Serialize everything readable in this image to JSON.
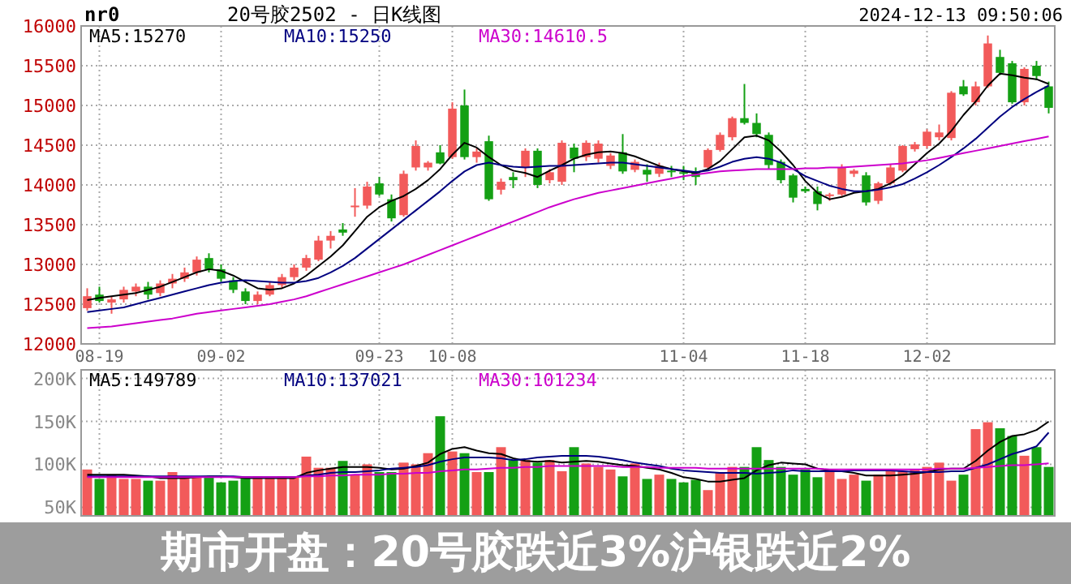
{
  "chart_data": [
    {
      "type": "candlestick",
      "title": "20号胶2502 - 日K线图",
      "annotations": [
        "nr0",
        "2024-12-13 09:50:06",
        "期市开盘：20号胶跌近3%沪银跌近2%"
      ],
      "categories": [
        null,
        "08-19",
        null,
        null,
        null,
        null,
        null,
        null,
        null,
        null,
        null,
        "09-02",
        null,
        null,
        null,
        null,
        null,
        null,
        null,
        null,
        null,
        null,
        null,
        null,
        "09-23",
        null,
        null,
        null,
        null,
        null,
        "10-08",
        null,
        null,
        null,
        null,
        null,
        null,
        null,
        null,
        null,
        null,
        null,
        null,
        null,
        null,
        null,
        null,
        null,
        null,
        "11-04",
        null,
        null,
        null,
        null,
        null,
        null,
        null,
        null,
        null,
        "11-18",
        null,
        null,
        null,
        null,
        null,
        null,
        null,
        null,
        null,
        "12-02",
        null,
        null,
        null,
        null,
        null,
        null,
        null,
        null,
        null,
        null
      ],
      "ohlc": [
        [
          12450,
          12700,
          12420,
          12600
        ],
        [
          12620,
          12720,
          12520,
          12540
        ],
        [
          12520,
          12600,
          12380,
          12560
        ],
        [
          12560,
          12720,
          12520,
          12680
        ],
        [
          12660,
          12760,
          12600,
          12720
        ],
        [
          12720,
          12780,
          12560,
          12620
        ],
        [
          12640,
          12800,
          12600,
          12760
        ],
        [
          12760,
          12880,
          12700,
          12820
        ],
        [
          12820,
          12960,
          12780,
          12900
        ],
        [
          12900,
          13100,
          12860,
          13060
        ],
        [
          13080,
          13140,
          12900,
          12940
        ],
        [
          12940,
          13000,
          12780,
          12820
        ],
        [
          12800,
          12840,
          12640,
          12680
        ],
        [
          12660,
          12700,
          12500,
          12540
        ],
        [
          12540,
          12660,
          12500,
          12620
        ],
        [
          12620,
          12780,
          12600,
          12740
        ],
        [
          12740,
          12880,
          12700,
          12840
        ],
        [
          12840,
          13000,
          12800,
          12960
        ],
        [
          12960,
          13120,
          12920,
          13080
        ],
        [
          13060,
          13360,
          13040,
          13300
        ],
        [
          13300,
          13420,
          13200,
          13360
        ],
        [
          13440,
          13520,
          13360,
          13400
        ],
        [
          13720,
          13960,
          13600,
          13740
        ],
        [
          13740,
          14040,
          13700,
          13980
        ],
        [
          14020,
          14100,
          13860,
          13880
        ],
        [
          13820,
          13880,
          13540,
          13580
        ],
        [
          13620,
          14180,
          13600,
          14140
        ],
        [
          14220,
          14560,
          14180,
          14490
        ],
        [
          14220,
          14300,
          14180,
          14280
        ],
        [
          14410,
          14500,
          14260,
          14270
        ],
        [
          14350,
          15040,
          14330,
          14960
        ],
        [
          15000,
          15200,
          14320,
          14350
        ],
        [
          14350,
          14460,
          14280,
          14420
        ],
        [
          14550,
          14620,
          13800,
          13820
        ],
        [
          13940,
          14080,
          13880,
          14040
        ],
        [
          14100,
          14160,
          13960,
          14060
        ],
        [
          14220,
          14460,
          14100,
          14430
        ],
        [
          14430,
          14460,
          13960,
          14000
        ],
        [
          14060,
          14200,
          14020,
          14160
        ],
        [
          14040,
          14560,
          14000,
          14530
        ],
        [
          14470,
          14520,
          14160,
          14330
        ],
        [
          14350,
          14560,
          14300,
          14530
        ],
        [
          14330,
          14560,
          14280,
          14520
        ],
        [
          14240,
          14400,
          14200,
          14370
        ],
        [
          14410,
          14640,
          14140,
          14170
        ],
        [
          14190,
          14320,
          14160,
          14290
        ],
        [
          14190,
          14260,
          14040,
          14130
        ],
        [
          14140,
          14280,
          14100,
          14240
        ],
        [
          14180,
          14240,
          14100,
          14160
        ],
        [
          14160,
          14240,
          14060,
          14140
        ],
        [
          14170,
          14220,
          14000,
          14100
        ],
        [
          14220,
          14460,
          14200,
          14440
        ],
        [
          14440,
          14660,
          14420,
          14630
        ],
        [
          14600,
          14860,
          14560,
          14840
        ],
        [
          14840,
          15270,
          14760,
          14780
        ],
        [
          14780,
          14900,
          14600,
          14640
        ],
        [
          14630,
          14660,
          14200,
          14250
        ],
        [
          14290,
          14320,
          14020,
          14060
        ],
        [
          14120,
          14140,
          13780,
          13840
        ],
        [
          13950,
          13980,
          13900,
          13920
        ],
        [
          13920,
          13980,
          13680,
          13760
        ],
        [
          13860,
          13900,
          13800,
          13880
        ],
        [
          13880,
          14260,
          13860,
          14220
        ],
        [
          14140,
          14200,
          14100,
          14180
        ],
        [
          14120,
          14160,
          13740,
          13780
        ],
        [
          13800,
          14040,
          13760,
          14020
        ],
        [
          14020,
          14260,
          14000,
          14220
        ],
        [
          14180,
          14500,
          14160,
          14490
        ],
        [
          14450,
          14540,
          14420,
          14510
        ],
        [
          14490,
          14700,
          14460,
          14670
        ],
        [
          14600,
          14760,
          14560,
          14660
        ],
        [
          14590,
          15180,
          14560,
          15160
        ],
        [
          15240,
          15320,
          15120,
          15140
        ],
        [
          15040,
          15300,
          15000,
          15240
        ],
        [
          15240,
          15880,
          15220,
          15780
        ],
        [
          15610,
          15700,
          15380,
          15410
        ],
        [
          15530,
          15560,
          15020,
          15040
        ],
        [
          15040,
          15480,
          15000,
          15460
        ],
        [
          15500,
          15560,
          15320,
          15370
        ],
        [
          15240,
          15300,
          14900,
          14970
        ]
      ],
      "series": [
        {
          "name": "MA5:15270",
          "type": "line",
          "color": "#000000",
          "values": [
            12550,
            12580,
            12600,
            12620,
            12640,
            12680,
            12720,
            12780,
            12840,
            12900,
            12940,
            12920,
            12860,
            12780,
            12700,
            12680,
            12700,
            12760,
            12860,
            12980,
            13100,
            13240,
            13420,
            13600,
            13720,
            13800,
            13860,
            13950,
            14060,
            14200,
            14380,
            14530,
            14470,
            14350,
            14250,
            14180,
            14150,
            14100,
            14180,
            14250,
            14330,
            14380,
            14410,
            14420,
            14400,
            14360,
            14300,
            14240,
            14200,
            14170,
            14150,
            14200,
            14300,
            14450,
            14600,
            14620,
            14560,
            14420,
            14250,
            14050,
            13900,
            13820,
            13850,
            13900,
            13920,
            13950,
            14020,
            14120,
            14260,
            14400,
            14520,
            14680,
            14880,
            15050,
            15250,
            15400,
            15380,
            15350,
            15330,
            15270
          ]
        },
        {
          "name": "MA10:15250",
          "type": "line",
          "color": "#000080",
          "values": [
            12400,
            12420,
            12440,
            12460,
            12500,
            12540,
            12580,
            12620,
            12660,
            12700,
            12740,
            12770,
            12790,
            12800,
            12790,
            12780,
            12770,
            12770,
            12790,
            12830,
            12900,
            12980,
            13080,
            13200,
            13320,
            13440,
            13560,
            13680,
            13800,
            13920,
            14050,
            14170,
            14250,
            14280,
            14250,
            14230,
            14220,
            14230,
            14240,
            14240,
            14250,
            14260,
            14270,
            14280,
            14280,
            14260,
            14240,
            14220,
            14200,
            14180,
            14160,
            14180,
            14230,
            14290,
            14330,
            14350,
            14330,
            14280,
            14200,
            14110,
            14050,
            13990,
            13950,
            13920,
            13920,
            13940,
            13970,
            14010,
            14080,
            14160,
            14250,
            14350,
            14460,
            14580,
            14720,
            14860,
            14980,
            15080,
            15170,
            15250
          ]
        },
        {
          "name": "MA30:14610.5",
          "type": "line",
          "color": "#cc00cc",
          "values": [
            12200,
            12210,
            12220,
            12240,
            12260,
            12280,
            12300,
            12320,
            12350,
            12380,
            12400,
            12420,
            12440,
            12460,
            12480,
            12500,
            12530,
            12560,
            12600,
            12650,
            12700,
            12750,
            12800,
            12850,
            12900,
            12950,
            13000,
            13060,
            13120,
            13180,
            13240,
            13300,
            13360,
            13420,
            13480,
            13540,
            13600,
            13660,
            13720,
            13770,
            13820,
            13860,
            13900,
            13930,
            13960,
            13990,
            14020,
            14050,
            14080,
            14110,
            14130,
            14150,
            14170,
            14180,
            14190,
            14200,
            14200,
            14200,
            14200,
            14210,
            14210,
            14220,
            14220,
            14230,
            14240,
            14250,
            14260,
            14270,
            14290,
            14310,
            14340,
            14370,
            14400,
            14430,
            14460,
            14490,
            14520,
            14550,
            14580,
            14610.5
          ]
        }
      ],
      "ylim": [
        12000,
        16000
      ],
      "yticks": [
        12000,
        12500,
        13000,
        13500,
        14000,
        14500,
        15000,
        15500,
        16000
      ],
      "grid": true,
      "legend": "top"
    },
    {
      "type": "bar",
      "tick_labels": "y",
      "categories": [
        null,
        null,
        null,
        null,
        null,
        null,
        null,
        null,
        null,
        null,
        null,
        null,
        null,
        null,
        null,
        null,
        null,
        null,
        null,
        null,
        null,
        null,
        null,
        null,
        null,
        null,
        null,
        null,
        null,
        null,
        null,
        null,
        null,
        null,
        null,
        null,
        null,
        null,
        null,
        null,
        null,
        null,
        null,
        null,
        null,
        null,
        null,
        null,
        null,
        null,
        null,
        null,
        null,
        null,
        null,
        null,
        null,
        null,
        null,
        null,
        null,
        null,
        null,
        null,
        null,
        null,
        null,
        null,
        null,
        null,
        null,
        null,
        null,
        null,
        null,
        null,
        null,
        null,
        null,
        null
      ],
      "values": [
        94000,
        83000,
        88000,
        83000,
        83000,
        81000,
        81000,
        91000,
        85000,
        85000,
        86000,
        79000,
        81000,
        86000,
        86000,
        85000,
        86000,
        86000,
        109000,
        96000,
        96000,
        104000,
        88000,
        100000,
        91000,
        91000,
        102000,
        100000,
        113000,
        156000,
        115000,
        113000,
        91000,
        91000,
        120000,
        105000,
        105000,
        102000,
        105000,
        92000,
        120000,
        101000,
        97000,
        94000,
        86000,
        101000,
        83000,
        88000,
        83000,
        79000,
        82000,
        70000,
        91000,
        97000,
        97000,
        120000,
        105000,
        97000,
        88000,
        94000,
        85000,
        91000,
        83000,
        88000,
        81000,
        88000,
        92000,
        92000,
        94000,
        97000,
        102000,
        81000,
        88000,
        141000,
        149000,
        142000,
        133000,
        110000,
        120000,
        97000
      ],
      "colors": [
        "#f25a5a",
        "#14a014",
        "#f25a5a",
        "#f25a5a",
        "#f25a5a",
        "#14a014",
        "#f25a5a",
        "#f25a5a",
        "#f25a5a",
        "#f25a5a",
        "#14a014",
        "#14a014",
        "#14a014",
        "#14a014",
        "#f25a5a",
        "#f25a5a",
        "#f25a5a",
        "#f25a5a",
        "#f25a5a",
        "#f25a5a",
        "#f25a5a",
        "#14a014",
        "#f25a5a",
        "#f25a5a",
        "#14a014",
        "#14a014",
        "#f25a5a",
        "#f25a5a",
        "#f25a5a",
        "#14a014",
        "#f25a5a",
        "#14a014",
        "#f25a5a",
        "#14a014",
        "#f25a5a",
        "#14a014",
        "#f25a5a",
        "#14a014",
        "#f25a5a",
        "#f25a5a",
        "#14a014",
        "#f25a5a",
        "#f25a5a",
        "#f25a5a",
        "#14a014",
        "#f25a5a",
        "#14a014",
        "#f25a5a",
        "#14a014",
        "#14a014",
        "#14a014",
        "#f25a5a",
        "#f25a5a",
        "#f25a5a",
        "#14a014",
        "#14a014",
        "#14a014",
        "#14a014",
        "#14a014",
        "#14a014",
        "#14a014",
        "#f25a5a",
        "#f25a5a",
        "#f25a5a",
        "#14a014",
        "#f25a5a",
        "#f25a5a",
        "#f25a5a",
        "#f25a5a",
        "#f25a5a",
        "#f25a5a",
        "#f25a5a",
        "#14a014",
        "#f25a5a",
        "#f25a5a",
        "#14a014",
        "#14a014",
        "#f25a5a",
        "#14a014",
        "#14a014"
      ],
      "series": [
        {
          "name": "MA5:149789",
          "type": "line",
          "color": "#000000",
          "values": [
            88000,
            88000,
            88000,
            88000,
            87000,
            86000,
            84000,
            84000,
            84000,
            85000,
            86000,
            86000,
            85000,
            84000,
            84000,
            84000,
            84000,
            84000,
            90000,
            93000,
            95000,
            97000,
            97000,
            97000,
            96000,
            94000,
            95000,
            98000,
            102000,
            112000,
            118000,
            120000,
            116000,
            113000,
            112000,
            107000,
            104000,
            103000,
            104000,
            102000,
            103000,
            104000,
            103000,
            101000,
            99000,
            98000,
            96000,
            94000,
            90000,
            85000,
            83000,
            80000,
            80000,
            82000,
            84000,
            93000,
            99000,
            102000,
            101000,
            100000,
            95000,
            93000,
            92000,
            90000,
            87000,
            87000,
            87000,
            88000,
            89000,
            91000,
            94000,
            95000,
            95000,
            104000,
            116000,
            126000,
            133000,
            135000,
            140000,
            149789
          ]
        },
        {
          "name": "MA10:137021",
          "type": "line",
          "color": "#000080",
          "values": [
            86000,
            86000,
            86000,
            86000,
            86000,
            86000,
            86000,
            86000,
            86000,
            86000,
            86000,
            86000,
            86000,
            85000,
            85000,
            85000,
            85000,
            85000,
            87000,
            88000,
            90000,
            91000,
            91000,
            92000,
            93000,
            95000,
            96000,
            97000,
            99000,
            103000,
            106000,
            108000,
            108000,
            108000,
            107000,
            105000,
            106000,
            108000,
            109000,
            110000,
            110000,
            110000,
            109000,
            107000,
            105000,
            102000,
            100000,
            98000,
            95000,
            93000,
            92000,
            91000,
            90000,
            90000,
            90000,
            89000,
            90000,
            91000,
            93000,
            92000,
            92000,
            92000,
            92000,
            93000,
            93000,
            93000,
            93000,
            92000,
            91000,
            91000,
            91000,
            92000,
            92000,
            96000,
            100000,
            106000,
            112000,
            116000,
            121000,
            137021
          ]
        },
        {
          "name": "MA30:101234",
          "type": "line",
          "color": "#cc00cc",
          "values": [
            85000,
            85000,
            85000,
            85000,
            85000,
            85000,
            85000,
            85000,
            85000,
            85000,
            85000,
            85000,
            85000,
            85000,
            85000,
            85000,
            85000,
            85000,
            86000,
            86000,
            87000,
            87000,
            88000,
            88000,
            88000,
            89000,
            89000,
            90000,
            90000,
            92000,
            93000,
            94000,
            94000,
            95000,
            96000,
            96000,
            97000,
            97000,
            98000,
            98000,
            98000,
            98000,
            98000,
            98000,
            97000,
            97000,
            97000,
            96000,
            96000,
            96000,
            96000,
            95000,
            95000,
            95000,
            95000,
            95000,
            95000,
            95000,
            95000,
            95000,
            95000,
            94000,
            94000,
            94000,
            94000,
            94000,
            94000,
            94000,
            94000,
            94000,
            95000,
            95000,
            95000,
            96000,
            97000,
            98000,
            99000,
            99000,
            100000,
            101234
          ]
        }
      ],
      "ylim": [
        40000,
        210000
      ],
      "yticks": [
        {
          "value": 50000,
          "label": "50K"
        },
        {
          "value": 100000,
          "label": "100K"
        },
        {
          "value": 150000,
          "label": "150K"
        },
        {
          "value": 200000,
          "label": "200K"
        }
      ],
      "grid": true,
      "legend": "top"
    }
  ]
}
